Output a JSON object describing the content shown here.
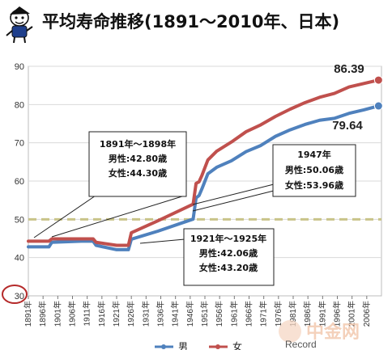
{
  "title": "平均寿命推移(1891〜2010年、日本)",
  "chart_data": {
    "type": "line",
    "ylim": [
      30,
      90
    ],
    "yticks": [
      30,
      40,
      50,
      60,
      70,
      80,
      90
    ],
    "xticks": [
      "1891年",
      "1896年",
      "1901年",
      "1906年",
      "1911年",
      "1916年",
      "1921年",
      "1926年",
      "1931年",
      "1936年",
      "1941年",
      "1946年",
      "1951年",
      "1956年",
      "1961年",
      "1966年",
      "1971年",
      "1976年",
      "1981年",
      "1986年",
      "1991年",
      "1996年",
      "2001年",
      "2006年"
    ],
    "xlim": [
      1891,
      2011
    ],
    "reference_line": 50,
    "series": [
      {
        "name": "男",
        "color": "#4f81bd",
        "points": [
          [
            1891,
            42.8
          ],
          [
            1898,
            42.8
          ],
          [
            1899,
            44.0
          ],
          [
            1910,
            44.3
          ],
          [
            1913,
            44.3
          ],
          [
            1914,
            43.2
          ],
          [
            1921,
            42.06
          ],
          [
            1925,
            42.06
          ],
          [
            1926,
            44.8
          ],
          [
            1935,
            46.9
          ],
          [
            1947,
            50.06
          ],
          [
            1948,
            55.6
          ],
          [
            1949,
            56.2
          ],
          [
            1950,
            58.0
          ],
          [
            1952,
            61.9
          ],
          [
            1955,
            63.6
          ],
          [
            1960,
            65.3
          ],
          [
            1965,
            67.7
          ],
          [
            1970,
            69.3
          ],
          [
            1975,
            71.7
          ],
          [
            1980,
            73.4
          ],
          [
            1985,
            74.8
          ],
          [
            1990,
            75.9
          ],
          [
            1995,
            76.4
          ],
          [
            2000,
            77.7
          ],
          [
            2005,
            78.6
          ],
          [
            2010,
            79.64
          ]
        ]
      },
      {
        "name": "女",
        "color": "#c0504d",
        "points": [
          [
            1891,
            44.3
          ],
          [
            1898,
            44.3
          ],
          [
            1899,
            44.9
          ],
          [
            1910,
            44.9
          ],
          [
            1913,
            44.9
          ],
          [
            1914,
            44.0
          ],
          [
            1921,
            43.2
          ],
          [
            1925,
            43.2
          ],
          [
            1926,
            46.5
          ],
          [
            1935,
            49.6
          ],
          [
            1947,
            53.96
          ],
          [
            1948,
            59.4
          ],
          [
            1949,
            59.8
          ],
          [
            1950,
            61.5
          ],
          [
            1952,
            65.5
          ],
          [
            1955,
            67.8
          ],
          [
            1960,
            70.2
          ],
          [
            1965,
            72.9
          ],
          [
            1970,
            74.7
          ],
          [
            1975,
            76.9
          ],
          [
            1980,
            78.8
          ],
          [
            1985,
            80.5
          ],
          [
            1990,
            81.9
          ],
          [
            1995,
            82.9
          ],
          [
            2000,
            84.6
          ],
          [
            2005,
            85.5
          ],
          [
            2010,
            86.39
          ]
        ]
      }
    ],
    "end_labels": {
      "female": "86.39",
      "male": "79.64"
    },
    "annotations": [
      {
        "lines": [
          "1891年〜1898年",
          "男性:42.80歳",
          "女性:44.30歳"
        ]
      },
      {
        "lines": [
          "1947年",
          "男性:50.06歳",
          "女性:53.96歳"
        ]
      },
      {
        "lines": [
          "1921年〜1925年",
          "男性:42.06歳",
          "女性:43.20歳"
        ]
      }
    ],
    "legend": [
      "男",
      "女"
    ]
  },
  "watermark": [
    "中金网",
    "Record"
  ]
}
